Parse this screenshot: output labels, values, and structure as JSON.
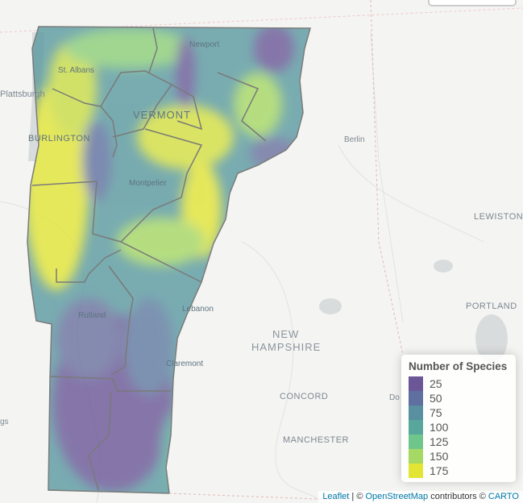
{
  "map": {
    "region": "Vermont",
    "labels": {
      "st_albans": "St. Albans",
      "plattsburgh": "Plattsburgh",
      "burlington": "BURLINGTON",
      "vermont": "VERMONT",
      "montpelier": "Montpelier",
      "newport": "Newport",
      "berlin": "Berlin",
      "lewiston": "LEWISTON",
      "portland": "PORTLAND",
      "new": "NEW",
      "hampshire": "HAMPSHIRE",
      "rutland": "Rutland",
      "lebanon": "Lebanon",
      "claremont": "Claremont",
      "concord": "CONCORD",
      "manchester": "MANCHESTER",
      "gs": "gs",
      "do": "Do"
    }
  },
  "legend": {
    "title": "Number of Species",
    "items": [
      {
        "label": "25",
        "color": "#6b5797"
      },
      {
        "label": "50",
        "color": "#5e6fa0"
      },
      {
        "label": "75",
        "color": "#5890a0"
      },
      {
        "label": "100",
        "color": "#58a69c"
      },
      {
        "label": "125",
        "color": "#6fc68c"
      },
      {
        "label": "150",
        "color": "#a6d864"
      },
      {
        "label": "175",
        "color": "#e2e534"
      }
    ]
  },
  "attribution": {
    "leaflet": "Leaflet",
    "sep": " | © ",
    "osm": "OpenStreetMap",
    "contrib": " contributors © ",
    "carto": "CARTO"
  }
}
